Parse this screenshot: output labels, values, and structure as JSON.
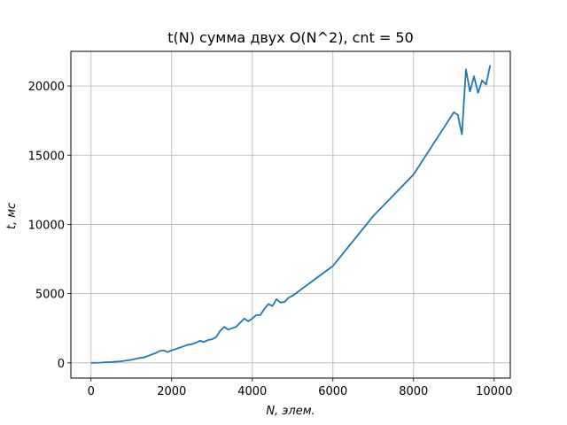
{
  "chart_data": {
    "type": "line",
    "title": "t(N) сумма двух O(N^2), cnt = 50",
    "xlabel": "N, элем.",
    "ylabel": "t, мс",
    "xlim": [
      -500,
      10400
    ],
    "ylim": [
      -1100,
      22500
    ],
    "xticks": [
      0,
      2000,
      4000,
      6000,
      8000,
      10000
    ],
    "yticks": [
      0,
      5000,
      10000,
      15000,
      20000
    ],
    "xtick_labels": [
      "0",
      "2000",
      "4000",
      "6000",
      "8000",
      "10000"
    ],
    "ytick_labels": [
      "0",
      "5000",
      "10000",
      "15000",
      "20000"
    ],
    "grid": true,
    "line_color": "#1f77b4",
    "series": [
      {
        "name": "",
        "x": [
          0,
          100,
          200,
          300,
          400,
          500,
          600,
          700,
          800,
          900,
          1000,
          1100,
          1200,
          1300,
          1400,
          1500,
          1600,
          1700,
          1800,
          1900,
          2000,
          2100,
          2200,
          2300,
          2400,
          2500,
          2600,
          2700,
          2800,
          2900,
          3000,
          3100,
          3200,
          3300,
          3400,
          3500,
          3600,
          3700,
          3800,
          3900,
          4000,
          4100,
          4200,
          4300,
          4400,
          4500,
          4600,
          4700,
          4800,
          4900,
          5000,
          6000,
          7000,
          8000,
          9000,
          9100,
          9200,
          9300,
          9400,
          9500,
          9600,
          9700,
          9800,
          9900
        ],
        "y": [
          0,
          5,
          10,
          25,
          50,
          60,
          80,
          100,
          130,
          180,
          220,
          280,
          350,
          380,
          480,
          600,
          700,
          850,
          900,
          780,
          900,
          1000,
          1100,
          1200,
          1300,
          1350,
          1450,
          1600,
          1500,
          1650,
          1700,
          1850,
          2300,
          2600,
          2400,
          2500,
          2600,
          2900,
          3200,
          3000,
          3200,
          3450,
          3450,
          3900,
          4250,
          4100,
          4600,
          4350,
          4400,
          4700,
          4850,
          7000,
          10600,
          13600,
          18100,
          17900,
          16500,
          21200,
          19600,
          20700,
          19500,
          20400,
          20100,
          21500
        ]
      }
    ]
  }
}
